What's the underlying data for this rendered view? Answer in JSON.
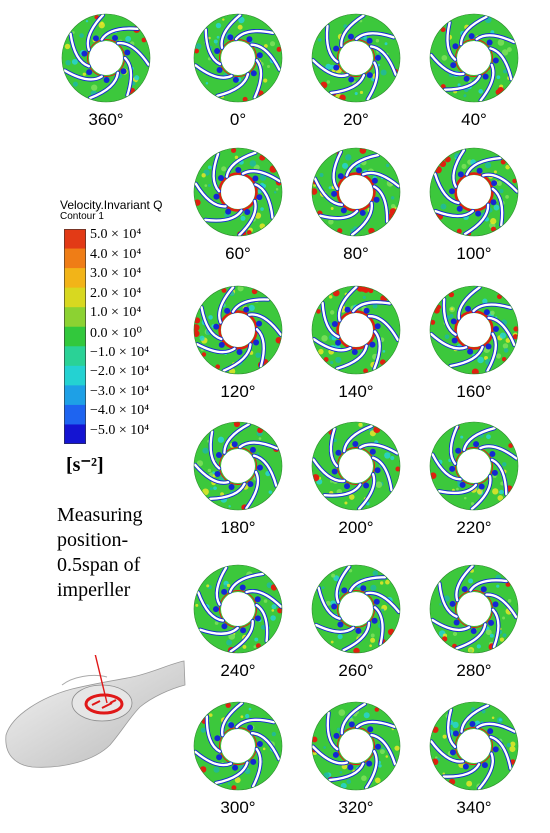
{
  "legend": {
    "title": "Velocity.Invariant Q",
    "subtitle": "Contour 1",
    "ticks": [
      "5.0 × 10⁴",
      "4.0 × 10⁴",
      "3.0 × 10⁴",
      "2.0 × 10⁴",
      "1.0 × 10⁴",
      "0.0 × 10⁰",
      "−1.0 × 10⁴",
      "−2.0 × 10⁴",
      "−3.0 × 10⁴",
      "−4.0 × 10⁴",
      "−5.0 × 10⁴"
    ],
    "unit": "[s⁻²]",
    "colors": [
      "#e23a16",
      "#ef7d16",
      "#f2b418",
      "#d8d820",
      "#8cd232",
      "#32c83c",
      "#2ad296",
      "#24d2d2",
      "#1ea0e6",
      "#1e64f0",
      "#1414d2"
    ]
  },
  "annotation": {
    "line1": "Measuring",
    "line2": "position-",
    "line3": "0.5span of",
    "line4": "imperller"
  },
  "panels": [
    {
      "angle": "360°"
    },
    {
      "angle": "0°"
    },
    {
      "angle": "20°"
    },
    {
      "angle": "40°"
    },
    {
      "angle": "60°"
    },
    {
      "angle": "80°"
    },
    {
      "angle": "100°"
    },
    {
      "angle": "120°"
    },
    {
      "angle": "140°"
    },
    {
      "angle": "160°"
    },
    {
      "angle": "180°"
    },
    {
      "angle": "200°"
    },
    {
      "angle": "220°"
    },
    {
      "angle": "240°"
    },
    {
      "angle": "260°"
    },
    {
      "angle": "280°"
    },
    {
      "angle": "300°"
    },
    {
      "angle": "320°"
    },
    {
      "angle": "340°"
    }
  ],
  "colors": {
    "field_green": "#3cc83c",
    "blade_white": "#ffffff",
    "vortex_red": "#e02010",
    "vortex_blue": "#1428d2",
    "vortex_yellow": "#e6e628",
    "vortex_cyan": "#28d2d2"
  }
}
